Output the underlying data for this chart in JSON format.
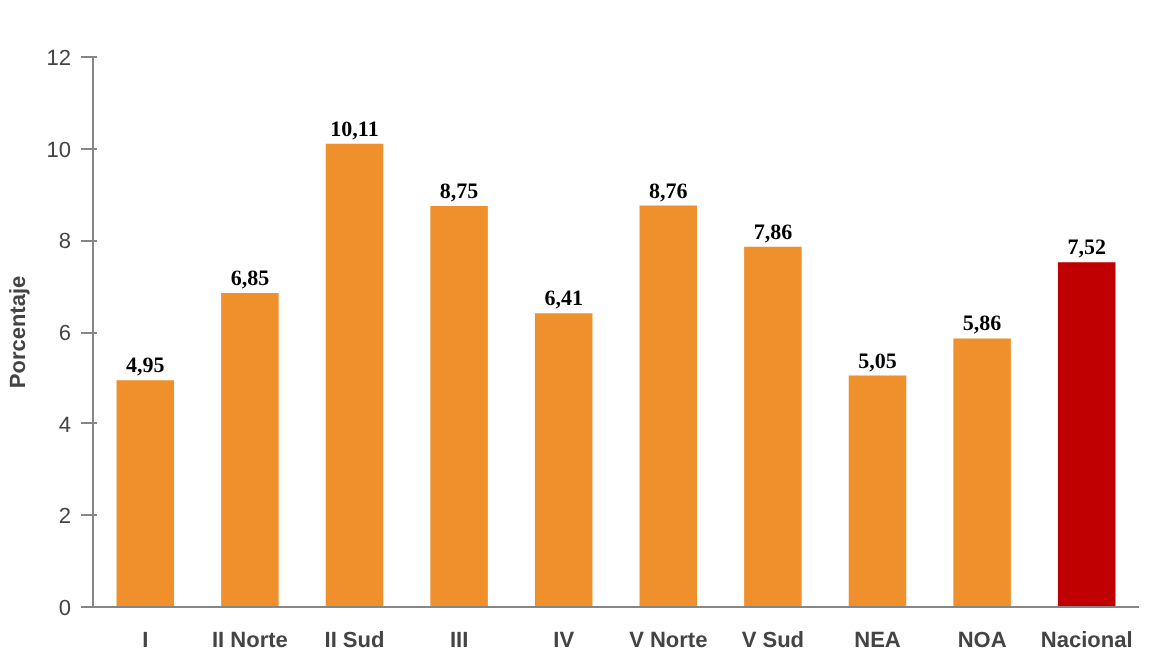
{
  "chart_data": {
    "type": "bar",
    "ylabel": "Porcentaje",
    "categories": [
      "I",
      "II Norte",
      "II Sud",
      "III",
      "IV",
      "V Norte",
      "V Sud",
      "NEA",
      "NOA",
      "Nacional"
    ],
    "values": [
      4.95,
      6.85,
      10.11,
      8.75,
      6.41,
      8.76,
      7.86,
      5.05,
      5.86,
      7.52
    ],
    "colors": [
      "#f0902c",
      "#f0902c",
      "#f0902c",
      "#f0902c",
      "#f0902c",
      "#f0902c",
      "#f0902c",
      "#f0902c",
      "#f0902c",
      "#c00000"
    ],
    "value_labels": [
      "4,95",
      "6,85",
      "10,11",
      "8,75",
      "6,41",
      "8,76",
      "7,86",
      "5,05",
      "5,86",
      "7,52"
    ],
    "ylim": [
      0,
      12
    ],
    "yticks": [
      0,
      2,
      4,
      6,
      8,
      10,
      12
    ],
    "grid": false
  }
}
